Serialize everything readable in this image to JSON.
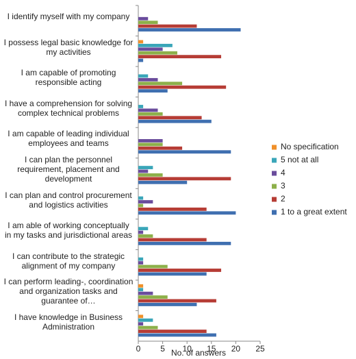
{
  "chart_data": {
    "type": "bar",
    "orientation": "horizontal",
    "x_label": "No. of answers",
    "categories": [
      "I identify myself with my company",
      "I possess legal basic knowledge for my activities",
      "I am capable of promoting responsible acting",
      "I have a comprehension for solving complex technical problems",
      "I am capable of leading individual employees and teams",
      "I can plan the personnel requirement, placement and development",
      "I can plan and control procurement and logistics activities",
      "I am able of working conceptually in my tasks and jurisdictional areas",
      "I can contribute to the strategic alignment of my company",
      "I can perform leading-, coordination and organization tasks and guarantee of…",
      "I have knowledge in Business Administration"
    ],
    "series": [
      {
        "name": "No specification",
        "color": "#f0902a",
        "values": [
          0,
          1,
          0,
          0,
          0,
          0,
          0,
          0,
          0,
          1,
          1
        ]
      },
      {
        "name": "5 not at all",
        "color": "#3aa6b9",
        "values": [
          0,
          7,
          2,
          1,
          0,
          3,
          1,
          2,
          1,
          1,
          3
        ]
      },
      {
        "name": "4",
        "color": "#6a4c9c",
        "values": [
          2,
          5,
          4,
          4,
          5,
          2,
          3,
          1,
          1,
          3,
          1
        ]
      },
      {
        "name": "3",
        "color": "#8db04a",
        "values": [
          4,
          8,
          9,
          5,
          5,
          5,
          1,
          3,
          6,
          6,
          4
        ]
      },
      {
        "name": "2",
        "color": "#b63c35",
        "values": [
          12,
          17,
          18,
          13,
          9,
          19,
          14,
          14,
          17,
          16,
          14
        ]
      },
      {
        "name": "1 to a great extent",
        "color": "#3f6fb0",
        "values": [
          21,
          1,
          6,
          15,
          19,
          10,
          20,
          19,
          14,
          12,
          16
        ]
      }
    ],
    "xlim": [
      0,
      25
    ],
    "xticks": [
      0,
      5,
      10,
      15,
      20,
      25
    ],
    "grid": false,
    "legend": "right"
  }
}
